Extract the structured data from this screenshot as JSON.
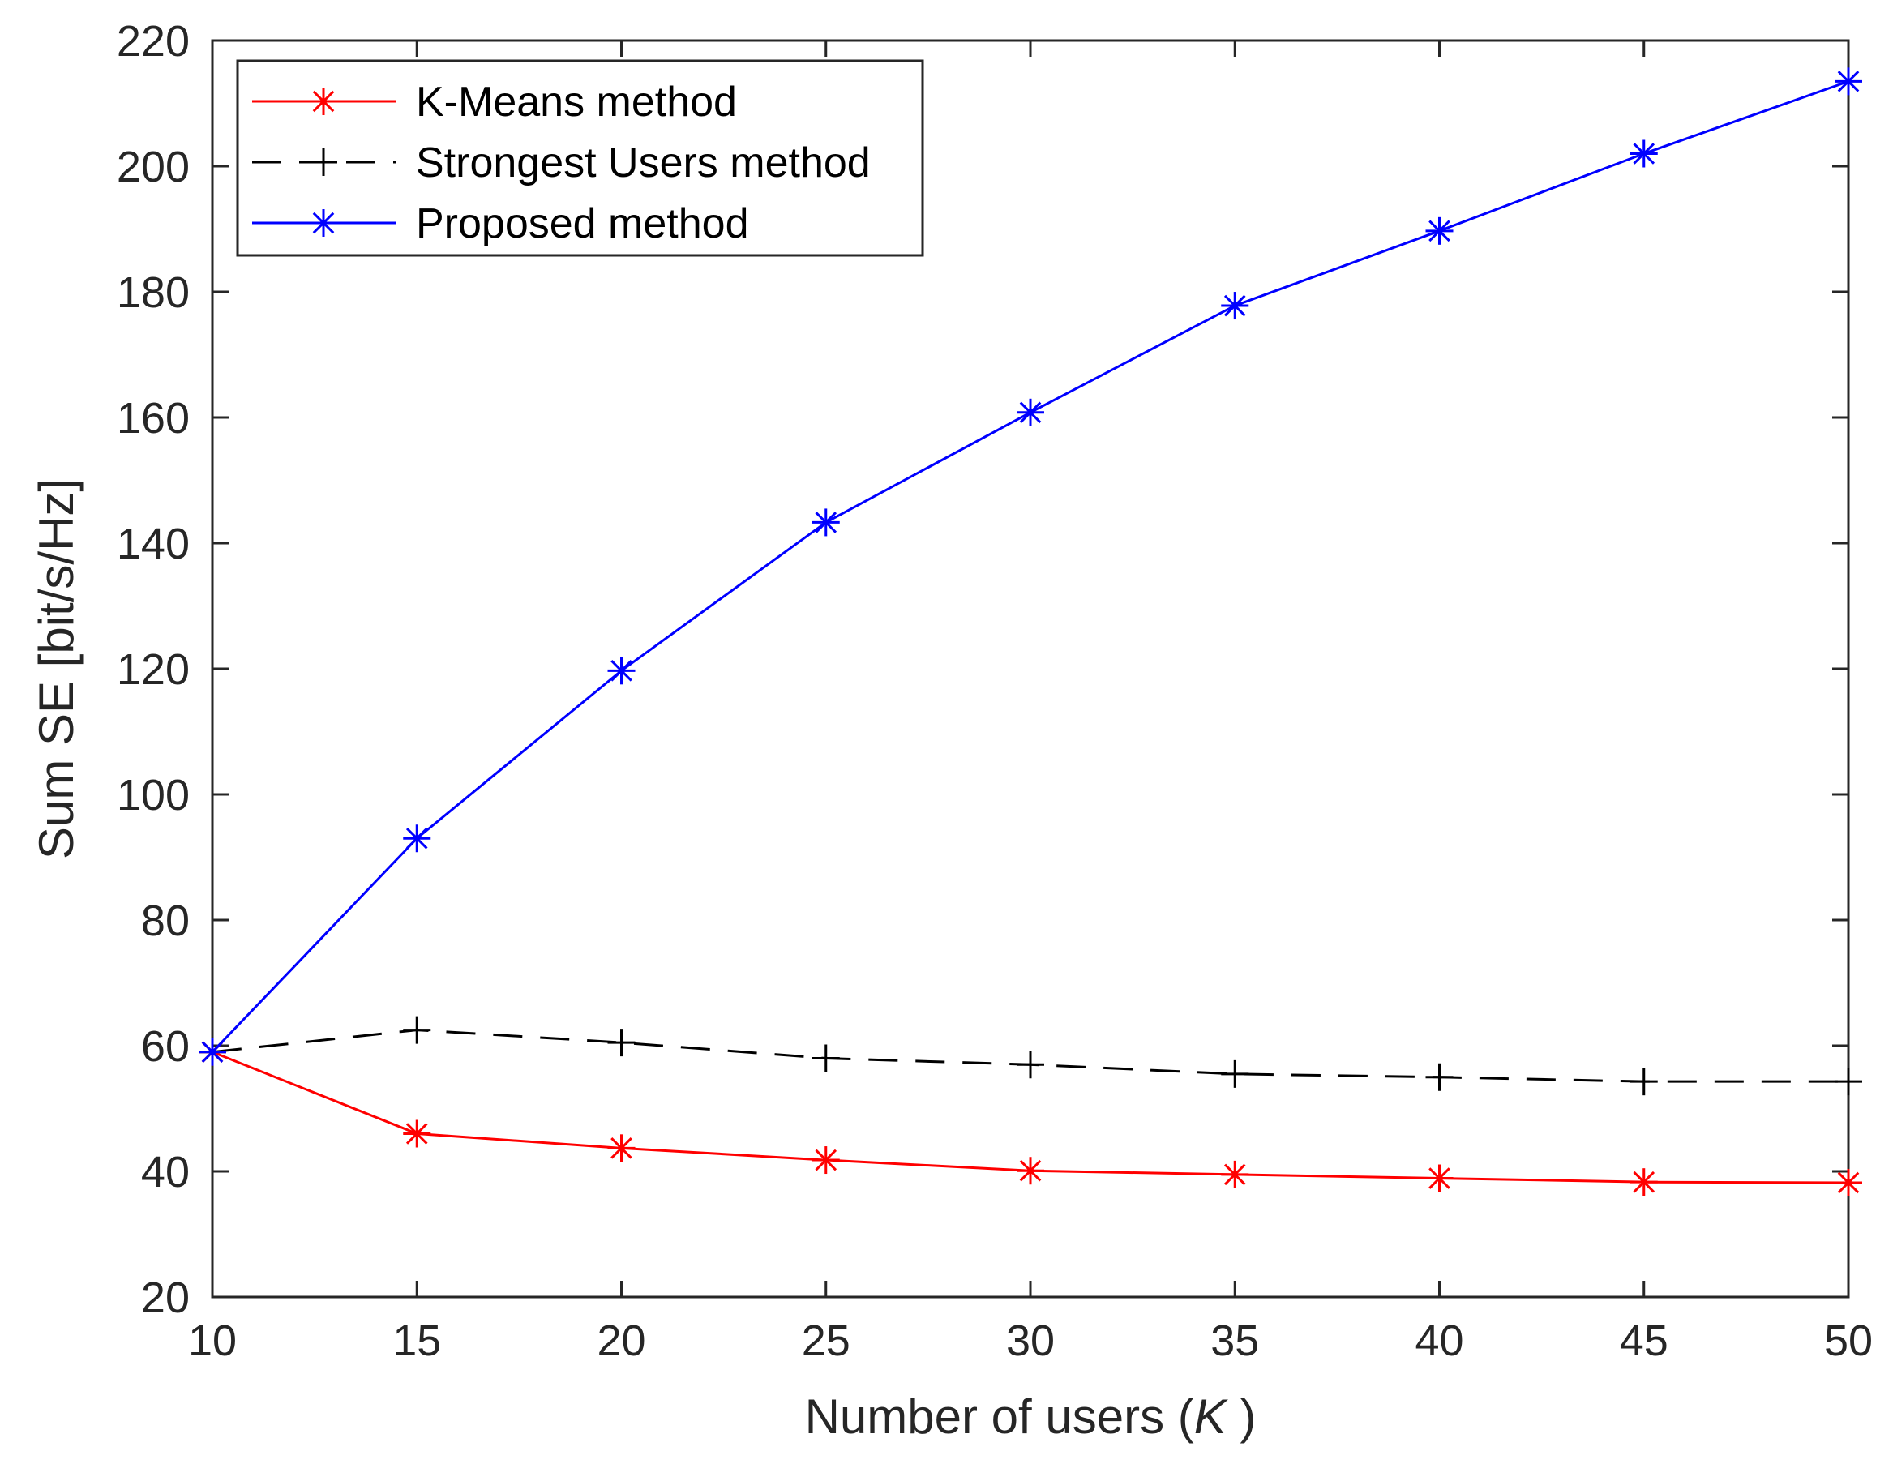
{
  "chart_data": {
    "type": "line",
    "title": "",
    "xlabel_prefix": "Number of users (",
    "xlabel_var": "K",
    "xlabel_suffix": " )",
    "ylabel": "Sum SE [bit/s/Hz]",
    "xlim": [
      10,
      50
    ],
    "ylim": [
      20,
      220
    ],
    "xticks": [
      10,
      15,
      20,
      25,
      30,
      35,
      40,
      45,
      50
    ],
    "yticks": [
      20,
      40,
      60,
      80,
      100,
      120,
      140,
      160,
      180,
      200,
      220
    ],
    "grid": false,
    "legend_position": "top-left",
    "x": [
      10,
      15,
      20,
      25,
      30,
      35,
      40,
      45,
      50
    ],
    "series": [
      {
        "name": "K-Means method",
        "values": [
          59,
          46,
          43.7,
          41.8,
          40.1,
          39.5,
          38.9,
          38.3,
          38.2
        ],
        "color": "#ff0000",
        "line": "solid",
        "marker": "asterisk"
      },
      {
        "name": "Strongest Users method",
        "values": [
          59,
          62.5,
          60.5,
          58,
          57,
          55.5,
          55,
          54.3,
          54.3
        ],
        "color": "#000000",
        "line": "dashed",
        "marker": "plus"
      },
      {
        "name": "Proposed method",
        "values": [
          59,
          93,
          119.7,
          143.3,
          160.8,
          177.8,
          189.7,
          202,
          213.5
        ],
        "color": "#0000ff",
        "line": "solid",
        "marker": "asterisk"
      }
    ]
  }
}
